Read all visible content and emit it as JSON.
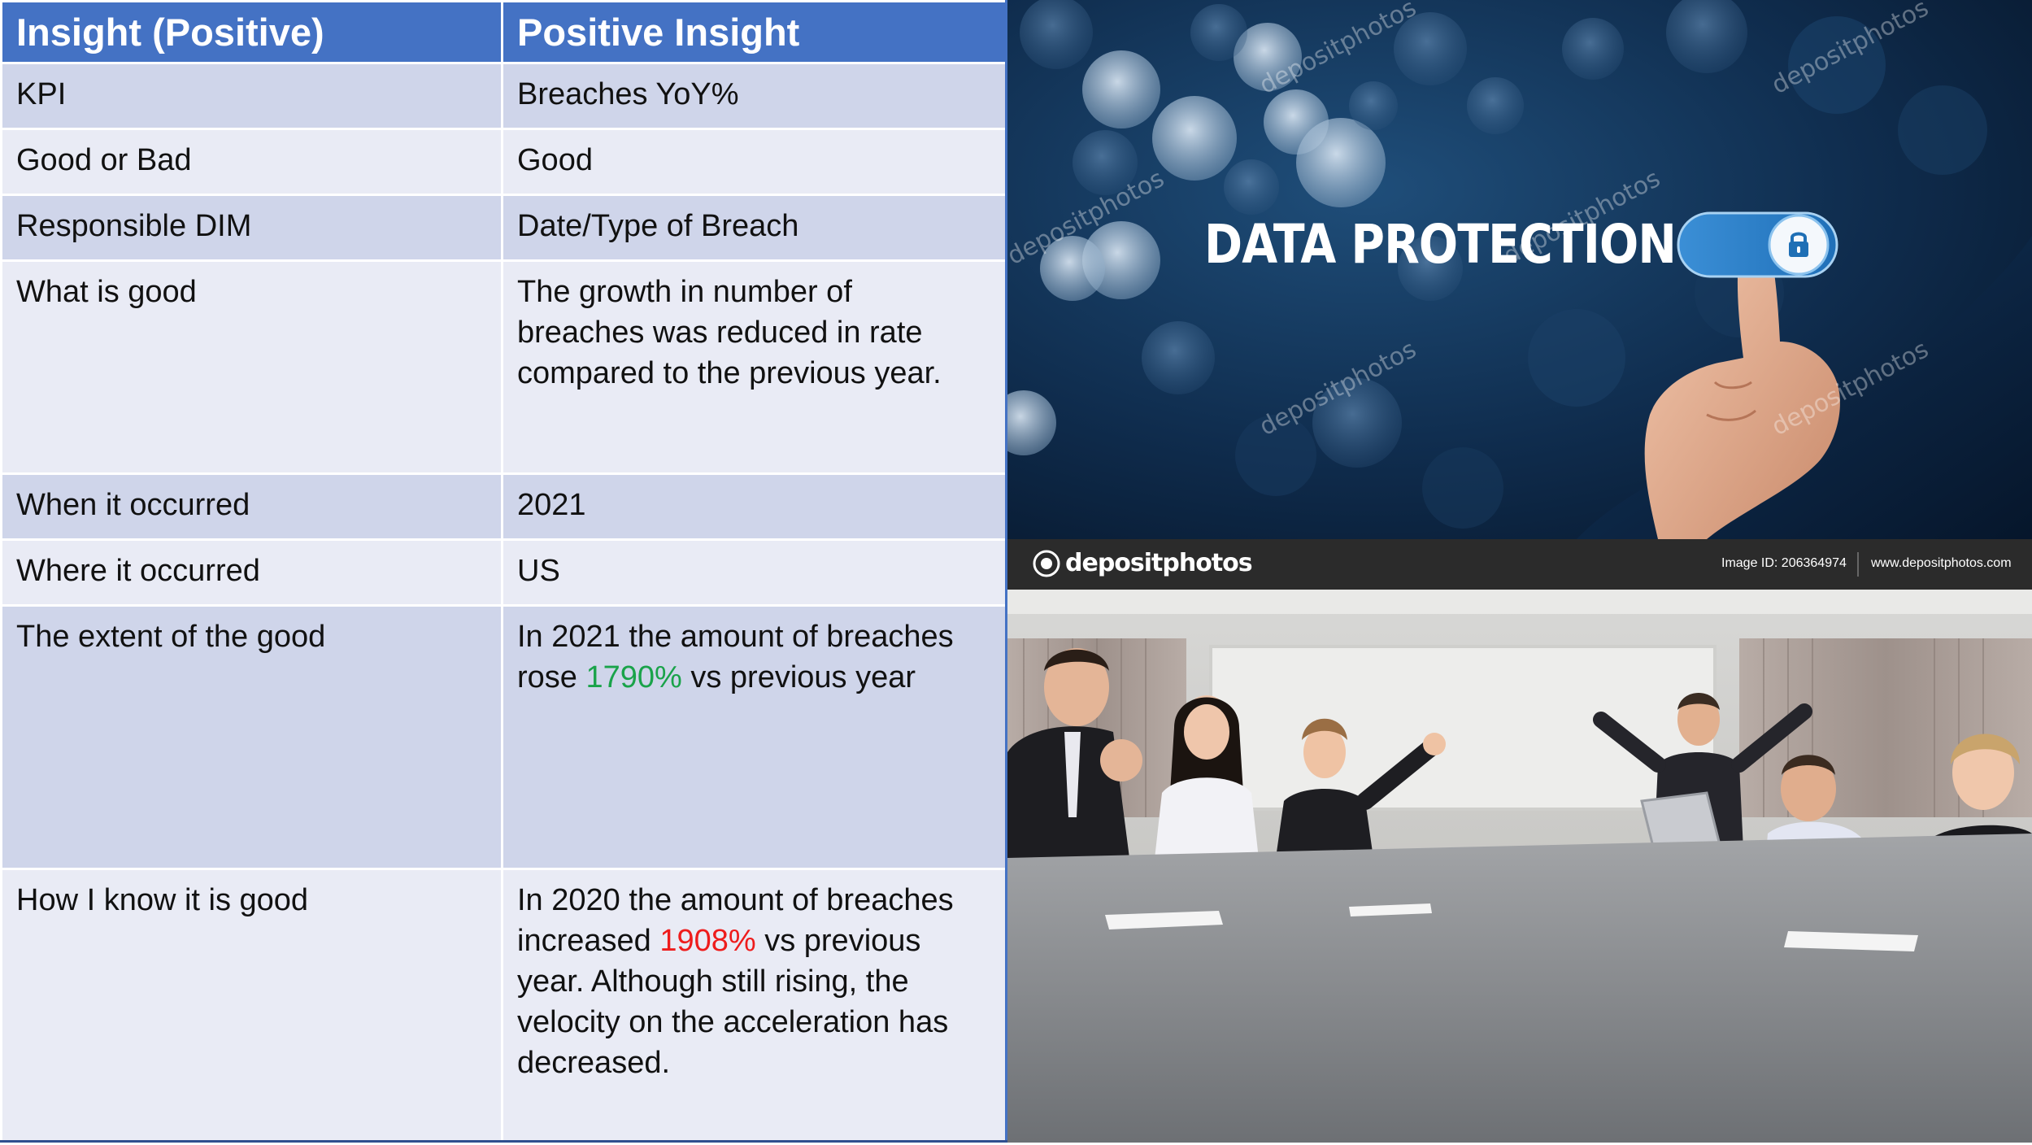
{
  "table": {
    "headers": [
      "Insight (Positive)",
      "Positive Insight"
    ],
    "rows": [
      {
        "label": "KPI",
        "value": "Breaches YoY%"
      },
      {
        "label": "Good or Bad",
        "value": "Good"
      },
      {
        "label": "Responsible DIM",
        "value": "Date/Type of Breach"
      },
      {
        "label": "What is good",
        "value": "The growth in number of breaches was reduced in rate compared to the previous year."
      },
      {
        "label": "When it occurred",
        "value": "2021"
      },
      {
        "label": "Where it occurred",
        "value": "US"
      },
      {
        "label": "The extent of the good",
        "value_pre": "In 2021 the amount of breaches rose ",
        "value_highlight": "1790%",
        "value_post": " vs previous year"
      },
      {
        "label": "How I know it is good",
        "value_pre": "In 2020 the amount of breaches increased ",
        "value_highlight": "1908%",
        "value_post": " vs previous year.  Although still rising, the velocity on the acceleration has decreased."
      }
    ],
    "colors": {
      "header": "#4472c4",
      "row_dark": "#cfd5ea",
      "row_light": "#e9ebf5",
      "good": "#1aa34a",
      "bad": "#ee1c1c"
    }
  },
  "photo_top": {
    "title": "DATA PROTECTION",
    "watermark": "depositphotos",
    "icon": "lock-icon"
  },
  "photo_bottom": {
    "stock_bar": {
      "logo": "depositphotos",
      "image_id": "Image ID: 206364974",
      "url": "www.depositphotos.com"
    }
  }
}
